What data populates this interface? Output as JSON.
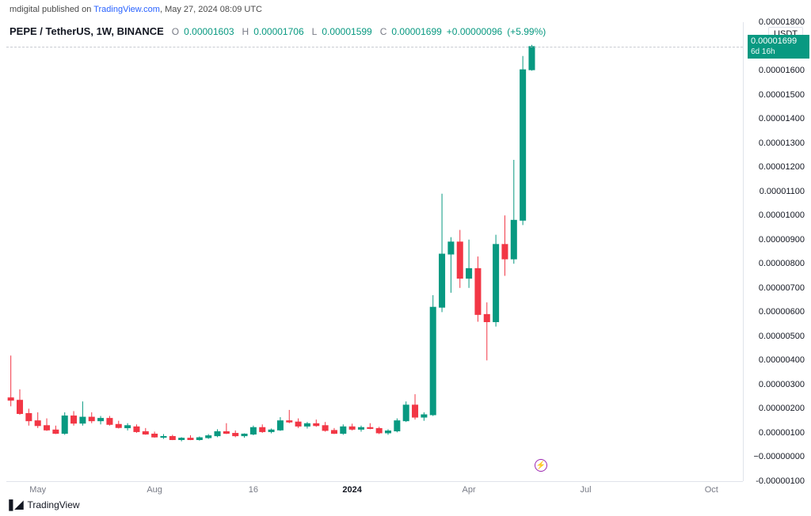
{
  "header": {
    "publisher": "mdigital",
    "pub_text_prefix": "mdigital published on ",
    "site": "TradingView.com",
    "pub_text_suffix": ", May 27, 2024 08:09 UTC"
  },
  "symbol": {
    "pair": "PEPE / TetherUS, 1W, BINANCE",
    "o_label": "O",
    "o": "0.00001603",
    "h_label": "H",
    "h": "0.00001706",
    "l_label": "L",
    "l": "0.00001599",
    "c_label": "C",
    "c": "0.00001699",
    "change": "+0.00000096",
    "change_pct": "(+5.99%)",
    "ohlc_color": "#089981"
  },
  "axes": {
    "unit_label": "USDT",
    "y_min": -1e-06,
    "y_max": 1.8e-05,
    "y_ticks": [
      {
        "v": 1.8e-05,
        "label": "0.00001800"
      },
      {
        "v": 1.7e-05,
        "label": ""
      },
      {
        "v": 1.6e-05,
        "label": "0.00001600"
      },
      {
        "v": 1.5e-05,
        "label": "0.00001500"
      },
      {
        "v": 1.4e-05,
        "label": "0.00001400"
      },
      {
        "v": 1.3e-05,
        "label": "0.00001300"
      },
      {
        "v": 1.2e-05,
        "label": "0.00001200"
      },
      {
        "v": 1.1e-05,
        "label": "0.00001100"
      },
      {
        "v": 1e-05,
        "label": "0.00001000"
      },
      {
        "v": 9e-06,
        "label": "0.00000900"
      },
      {
        "v": 8e-06,
        "label": "0.00000800"
      },
      {
        "v": 7e-06,
        "label": "0.00000700"
      },
      {
        "v": 6e-06,
        "label": "0.00000600"
      },
      {
        "v": 5e-06,
        "label": "0.00000500"
      },
      {
        "v": 4e-06,
        "label": "0.00000400"
      },
      {
        "v": 3e-06,
        "label": "0.00000300"
      },
      {
        "v": 2e-06,
        "label": "0.00000200"
      },
      {
        "v": 1e-06,
        "label": "0.00000100"
      },
      {
        "v": 0.0,
        "label": "−0.00000000"
      },
      {
        "v": -1e-06,
        "label": "-0.00000100"
      }
    ],
    "x_ticks": [
      {
        "i": 3,
        "label": "May",
        "major": false
      },
      {
        "i": 16,
        "label": "Aug",
        "major": false
      },
      {
        "i": 27,
        "label": "16",
        "major": false
      },
      {
        "i": 38,
        "label": "2024",
        "major": true
      },
      {
        "i": 51,
        "label": "Apr",
        "major": false
      },
      {
        "i": 64,
        "label": "Jul",
        "major": false
      },
      {
        "i": 78,
        "label": "Oct",
        "major": false
      }
    ],
    "x_total_slots": 82
  },
  "price_marker": {
    "value": 1.699e-05,
    "label": "0.00001699",
    "sub": "6d 16h",
    "bg": "#089981"
  },
  "styling": {
    "up_color": "#089981",
    "down_color": "#f23645",
    "wick_up": "#089981",
    "wick_down": "#f23645",
    "grid_color": "#f0f3fa",
    "axis_text": "#131722",
    "muted_text": "#787b86",
    "candle_width_ratio": 0.62,
    "dash_line_color": "#b2b5be",
    "background": "#ffffff",
    "font_size_axis": 11,
    "font_size_info": 12
  },
  "earnings_marker": {
    "i": 59,
    "y_value": -3.5e-07
  },
  "candles": [
    {
      "o": 2.45e-06,
      "h": 4.2e-06,
      "l": 2.1e-06,
      "c": 2.35e-06
    },
    {
      "o": 2.35e-06,
      "h": 2.8e-06,
      "l": 1.75e-06,
      "c": 1.8e-06
    },
    {
      "o": 1.8e-06,
      "h": 2e-06,
      "l": 1.3e-06,
      "c": 1.5e-06
    },
    {
      "o": 1.5e-06,
      "h": 1.85e-06,
      "l": 1.2e-06,
      "c": 1.3e-06
    },
    {
      "o": 1.3e-06,
      "h": 1.6e-06,
      "l": 1.08e-06,
      "c": 1.12e-06
    },
    {
      "o": 1.12e-06,
      "h": 1.3e-06,
      "l": 9.5e-07,
      "c": 9.8e-07
    },
    {
      "o": 9.8e-07,
      "h": 1.85e-06,
      "l": 9.2e-07,
      "c": 1.7e-06
    },
    {
      "o": 1.7e-06,
      "h": 1.9e-06,
      "l": 1.3e-06,
      "c": 1.4e-06
    },
    {
      "o": 1.4e-06,
      "h": 2.3e-06,
      "l": 1.3e-06,
      "c": 1.65e-06
    },
    {
      "o": 1.65e-06,
      "h": 1.85e-06,
      "l": 1.4e-06,
      "c": 1.5e-06
    },
    {
      "o": 1.5e-06,
      "h": 1.7e-06,
      "l": 1.35e-06,
      "c": 1.6e-06
    },
    {
      "o": 1.6e-06,
      "h": 1.7e-06,
      "l": 1.3e-06,
      "c": 1.35e-06
    },
    {
      "o": 1.35e-06,
      "h": 1.5e-06,
      "l": 1.18e-06,
      "c": 1.22e-06
    },
    {
      "o": 1.21e-06,
      "h": 1.4e-06,
      "l": 1.1e-06,
      "c": 1.3e-06
    },
    {
      "o": 1.25e-06,
      "h": 1.35e-06,
      "l": 1e-06,
      "c": 1.05e-06
    },
    {
      "o": 1.05e-06,
      "h": 1.2e-06,
      "l": 9.2e-07,
      "c": 9.5e-07
    },
    {
      "o": 9.5e-07,
      "h": 1.05e-06,
      "l": 8e-07,
      "c": 8.3e-07
    },
    {
      "o": 8.3e-07,
      "h": 9.5e-07,
      "l": 7.5e-07,
      "c": 8.5e-07
    },
    {
      "o": 8.5e-07,
      "h": 9.2e-07,
      "l": 7e-07,
      "c": 7.2e-07
    },
    {
      "o": 7.2e-07,
      "h": 8.2e-07,
      "l": 6.5e-07,
      "c": 7.8e-07
    },
    {
      "o": 7.8e-07,
      "h": 9e-07,
      "l": 7e-07,
      "c": 7.2e-07
    },
    {
      "o": 7.2e-07,
      "h": 8.5e-07,
      "l": 6.8e-07,
      "c": 8e-07
    },
    {
      "o": 8e-07,
      "h": 9.5e-07,
      "l": 7.5e-07,
      "c": 8.8e-07
    },
    {
      "o": 8.8e-07,
      "h": 1.15e-06,
      "l": 8.2e-07,
      "c": 1.05e-06
    },
    {
      "o": 1.05e-06,
      "h": 1.4e-06,
      "l": 9.5e-07,
      "c": 9.8e-07
    },
    {
      "o": 9.8e-07,
      "h": 1.1e-06,
      "l": 8.2e-07,
      "c": 8.8e-07
    },
    {
      "o": 8.8e-07,
      "h": 9.8e-07,
      "l": 8e-07,
      "c": 9.5e-07
    },
    {
      "o": 9.5e-07,
      "h": 1.3e-06,
      "l": 9e-07,
      "c": 1.22e-06
    },
    {
      "o": 1.22e-06,
      "h": 1.35e-06,
      "l": 1e-06,
      "c": 1.05e-06
    },
    {
      "o": 1.05e-06,
      "h": 1.18e-06,
      "l": 9.8e-07,
      "c": 1.12e-06
    },
    {
      "o": 1.12e-06,
      "h": 1.65e-06,
      "l": 1.08e-06,
      "c": 1.5e-06
    },
    {
      "o": 1.5e-06,
      "h": 1.95e-06,
      "l": 1.4e-06,
      "c": 1.45e-06
    },
    {
      "o": 1.45e-06,
      "h": 1.6e-06,
      "l": 1.2e-06,
      "c": 1.28e-06
    },
    {
      "o": 1.28e-06,
      "h": 1.45e-06,
      "l": 1.18e-06,
      "c": 1.38e-06
    },
    {
      "o": 1.38e-06,
      "h": 1.55e-06,
      "l": 1.25e-06,
      "c": 1.3e-06
    },
    {
      "o": 1.3e-06,
      "h": 1.45e-06,
      "l": 1.05e-06,
      "c": 1.1e-06
    },
    {
      "o": 1.1e-06,
      "h": 1.2e-06,
      "l": 9.5e-07,
      "c": 9.8e-07
    },
    {
      "o": 9.8e-07,
      "h": 1.35e-06,
      "l": 9.2e-07,
      "c": 1.25e-06
    },
    {
      "o": 1.25e-06,
      "h": 1.38e-06,
      "l": 1.1e-06,
      "c": 1.15e-06
    },
    {
      "o": 1.15e-06,
      "h": 1.3e-06,
      "l": 1.05e-06,
      "c": 1.22e-06
    },
    {
      "o": 1.22e-06,
      "h": 1.4e-06,
      "l": 1.15e-06,
      "c": 1.18e-06
    },
    {
      "o": 1.18e-06,
      "h": 1.25e-06,
      "l": 9.5e-07,
      "c": 1e-06
    },
    {
      "o": 1e-06,
      "h": 1.15e-06,
      "l": 9.2e-07,
      "c": 1.08e-06
    },
    {
      "o": 1.08e-06,
      "h": 1.6e-06,
      "l": 1.02e-06,
      "c": 1.5e-06
    },
    {
      "o": 1.5e-06,
      "h": 2.3e-06,
      "l": 1.45e-06,
      "c": 2.15e-06
    },
    {
      "o": 2.15e-06,
      "h": 2.6e-06,
      "l": 1.55e-06,
      "c": 1.65e-06
    },
    {
      "o": 1.65e-06,
      "h": 1.85e-06,
      "l": 1.5e-06,
      "c": 1.75e-06
    },
    {
      "o": 1.75e-06,
      "h": 6.7e-06,
      "l": 1.7e-06,
      "c": 6.2e-06
    },
    {
      "o": 6.2e-06,
      "h": 1.09e-05,
      "l": 6e-06,
      "c": 8.4e-06
    },
    {
      "o": 8.4e-06,
      "h": 9.1e-06,
      "l": 6.8e-06,
      "c": 8.9e-06
    },
    {
      "o": 8.9e-06,
      "h": 9.4e-06,
      "l": 7e-06,
      "c": 7.4e-06
    },
    {
      "o": 7.4e-06,
      "h": 9e-06,
      "l": 7e-06,
      "c": 7.8e-06
    },
    {
      "o": 7.8e-06,
      "h": 8.3e-06,
      "l": 5.6e-06,
      "c": 5.9e-06
    },
    {
      "o": 5.9e-06,
      "h": 6.4e-06,
      "l": 4e-06,
      "c": 5.6e-06
    },
    {
      "o": 5.6e-06,
      "h": 9.2e-06,
      "l": 5.4e-06,
      "c": 8.8e-06
    },
    {
      "o": 8.8e-06,
      "h": 1e-05,
      "l": 7.5e-06,
      "c": 8.2e-06
    },
    {
      "o": 8.2e-06,
      "h": 1.23e-05,
      "l": 8e-06,
      "c": 9.8e-06
    },
    {
      "o": 9.8e-06,
      "h": 1.66e-05,
      "l": 9.6e-06,
      "c": 1.603e-05
    },
    {
      "o": 1.603e-05,
      "h": 1.706e-05,
      "l": 1.599e-05,
      "c": 1.699e-05
    }
  ],
  "footer": {
    "brand": "TradingView",
    "logo_glyph": "❚◢"
  }
}
